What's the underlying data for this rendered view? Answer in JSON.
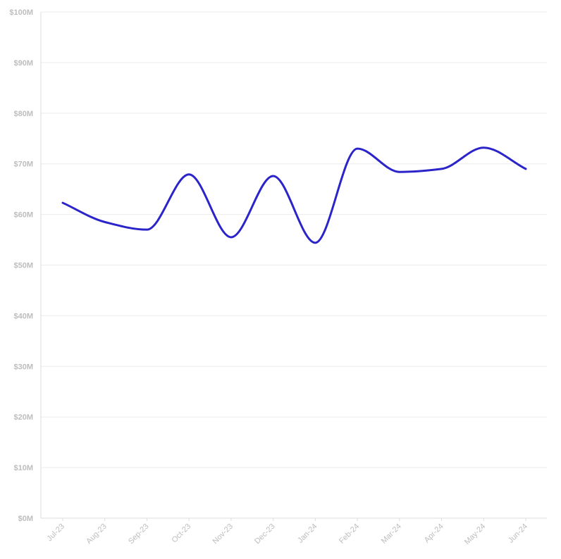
{
  "chart_data": {
    "type": "line",
    "categories": [
      "Jul-23",
      "Aug-23",
      "Sep-23",
      "Oct-23",
      "Nov-23",
      "Dec-23",
      "Jan-24",
      "Feb-24",
      "Mar-24",
      "Apr-24",
      "May-24",
      "Jun-24"
    ],
    "series": [
      {
        "values": [
          62.3,
          58.5,
          57.0,
          67.9,
          55.5,
          67.6,
          54.4,
          73.0,
          68.4,
          69.0,
          73.2,
          69.0
        ],
        "color": "#2b24c9"
      }
    ],
    "y_ticks": [
      "$0M",
      "$10M",
      "$20M",
      "$30M",
      "$40M",
      "$50M",
      "$60M",
      "$70M",
      "$80M",
      "$90M",
      "$100M"
    ],
    "ylim": [
      0,
      100
    ],
    "grid": true,
    "title": "",
    "xlabel": "",
    "ylabel": ""
  }
}
